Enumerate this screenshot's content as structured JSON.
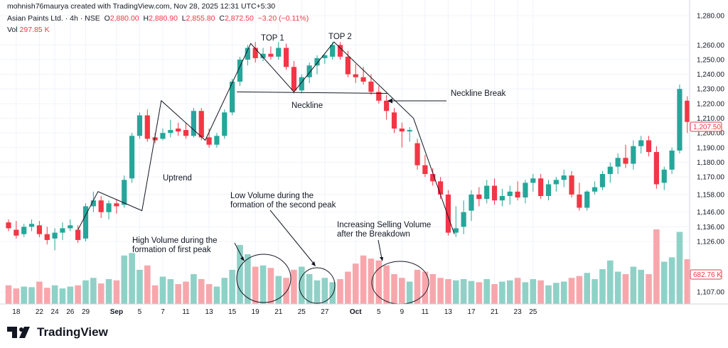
{
  "header": {
    "credit": "mohnish76maurya created with TradingView.com, Nov 28, 2025 12:31 UTC+5:30",
    "symbol": "Asian Paints Ltd. · 4h · NSE",
    "o_label": "O",
    "o_value": "2,880.00",
    "h_label": "H",
    "h_value": "2,880.90",
    "l_label": "L",
    "l_value": "2,855.80",
    "c_label": "C",
    "c_value": "2,872.50",
    "change": "−3.20 (−0.11%)",
    "vol_label": "Vol",
    "vol_value": "297.85 K"
  },
  "colors": {
    "up": "#26a69a",
    "down": "#f23645",
    "vol_up": "#8fd1c7",
    "vol_down": "#f7a7ac",
    "price_tag": "#f23645"
  },
  "price_tag": "1,207.50",
  "volume_tag": "682.76 K",
  "logo_text": "TradingView",
  "annotations": {
    "top1": "TOP 1",
    "top2": "TOP 2",
    "neckline": "Neckline",
    "neckline_break": "Neckline Break",
    "uptrend": "Uptrend",
    "low_volume_1": "Low Volume during the",
    "low_volume_2": "formation of the second peak",
    "high_volume_1": "High Volume during the",
    "high_volume_2": "formation of first peak",
    "increasing_1": "Increasing Selling Volume",
    "increasing_2": "after the Breakdown"
  },
  "chart_data": {
    "type": "candlestick",
    "y_ticks": [
      1280,
      1260,
      1250,
      1240,
      1230,
      1220,
      1210,
      1200,
      1190,
      1180,
      1170,
      1158,
      1146,
      1136,
      1126,
      1107
    ],
    "y_tick_labels": [
      "1,280.00",
      "1,260.00",
      "1,250.00",
      "1,240.00",
      "1,230.00",
      "1,220.00",
      "1,210.00",
      "1,200.00",
      "1,190.00",
      "1,180.00",
      "1,170.00",
      "1,158.00",
      "1,146.00",
      "1,136.00",
      "1,126.00",
      "1,107.00"
    ],
    "x_ticks": [
      {
        "label": "18",
        "i": 1
      },
      {
        "label": "22",
        "i": 4
      },
      {
        "label": "24",
        "i": 6
      },
      {
        "label": "26",
        "i": 8
      },
      {
        "label": "29",
        "i": 10
      },
      {
        "label": "Sep",
        "i": 14
      },
      {
        "label": "5",
        "i": 17
      },
      {
        "label": "7",
        "i": 20
      },
      {
        "label": "11",
        "i": 23
      },
      {
        "label": "13",
        "i": 26
      },
      {
        "label": "15",
        "i": 29
      },
      {
        "label": "19",
        "i": 32
      },
      {
        "label": "21",
        "i": 35
      },
      {
        "label": "25",
        "i": 38
      },
      {
        "label": "27",
        "i": 41
      },
      {
        "label": "Oct",
        "i": 45
      },
      {
        "label": "5",
        "i": 48
      },
      {
        "label": "9",
        "i": 51
      },
      {
        "label": "11",
        "i": 54
      },
      {
        "label": "13",
        "i": 57
      },
      {
        "label": "17",
        "i": 60
      },
      {
        "label": "21",
        "i": 63
      },
      {
        "label": "23",
        "i": 66
      },
      {
        "label": "25",
        "i": 68
      }
    ],
    "candles": [
      [
        1139,
        1141,
        1133,
        1135
      ],
      [
        1134,
        1140,
        1128,
        1130
      ],
      [
        1131,
        1138,
        1129,
        1136
      ],
      [
        1136,
        1141,
        1133,
        1138
      ],
      [
        1137,
        1140,
        1129,
        1131
      ],
      [
        1131,
        1136,
        1124,
        1127
      ],
      [
        1128,
        1135,
        1120,
        1132
      ],
      [
        1132,
        1139,
        1127,
        1135
      ],
      [
        1135,
        1141,
        1133,
        1137
      ],
      [
        1134,
        1137,
        1125,
        1127
      ],
      [
        1128,
        1152,
        1126,
        1150
      ],
      [
        1150,
        1160,
        1146,
        1154
      ],
      [
        1154,
        1157,
        1142,
        1146
      ],
      [
        1146,
        1154,
        1141,
        1152
      ],
      [
        1152,
        1155,
        1145,
        1150
      ],
      [
        1151,
        1171,
        1149,
        1168
      ],
      [
        1169,
        1200,
        1166,
        1198
      ],
      [
        1198,
        1214,
        1196,
        1212
      ],
      [
        1212,
        1216,
        1194,
        1196
      ],
      [
        1197,
        1200,
        1193,
        1195
      ],
      [
        1196,
        1203,
        1195,
        1200
      ],
      [
        1200,
        1209,
        1197,
        1202
      ],
      [
        1203,
        1207,
        1198,
        1201
      ],
      [
        1202,
        1207,
        1196,
        1198
      ],
      [
        1198,
        1217,
        1197,
        1215
      ],
      [
        1215,
        1217,
        1195,
        1197
      ],
      [
        1197,
        1203,
        1190,
        1192
      ],
      [
        1192,
        1200,
        1190,
        1198
      ],
      [
        1198,
        1216,
        1196,
        1214
      ],
      [
        1214,
        1237,
        1212,
        1235
      ],
      [
        1235,
        1252,
        1232,
        1250
      ],
      [
        1250,
        1260,
        1246,
        1258
      ],
      [
        1258,
        1262,
        1248,
        1251
      ],
      [
        1251,
        1258,
        1249,
        1254
      ],
      [
        1254,
        1259,
        1250,
        1252
      ],
      [
        1252,
        1262,
        1250,
        1258
      ],
      [
        1258,
        1261,
        1243,
        1245
      ],
      [
        1245,
        1249,
        1227,
        1229
      ],
      [
        1229,
        1240,
        1227,
        1238
      ],
      [
        1238,
        1248,
        1234,
        1246
      ],
      [
        1246,
        1253,
        1240,
        1251
      ],
      [
        1251,
        1254,
        1247,
        1253
      ],
      [
        1252,
        1262,
        1250,
        1260
      ],
      [
        1260,
        1262,
        1250,
        1252
      ],
      [
        1252,
        1256,
        1238,
        1240
      ],
      [
        1240,
        1247,
        1234,
        1238
      ],
      [
        1238,
        1245,
        1233,
        1235
      ],
      [
        1235,
        1240,
        1226,
        1228
      ],
      [
        1228,
        1232,
        1220,
        1222
      ],
      [
        1222,
        1226,
        1209,
        1215
      ],
      [
        1214,
        1217,
        1200,
        1203
      ],
      [
        1203,
        1207,
        1190,
        1201
      ],
      [
        1201,
        1204,
        1194,
        1202
      ],
      [
        1193,
        1196,
        1175,
        1178
      ],
      [
        1178,
        1185,
        1170,
        1172
      ],
      [
        1172,
        1176,
        1164,
        1167
      ],
      [
        1167,
        1170,
        1155,
        1158
      ],
      [
        1158,
        1161,
        1130,
        1132
      ],
      [
        1132,
        1150,
        1129,
        1135
      ],
      [
        1136,
        1154,
        1131,
        1146
      ],
      [
        1147,
        1161,
        1140,
        1158
      ],
      [
        1158,
        1163,
        1150,
        1155
      ],
      [
        1155,
        1168,
        1152,
        1164
      ],
      [
        1164,
        1169,
        1151,
        1154
      ],
      [
        1154,
        1162,
        1150,
        1157
      ],
      [
        1157,
        1164,
        1151,
        1160
      ],
      [
        1160,
        1167,
        1154,
        1156
      ],
      [
        1156,
        1168,
        1152,
        1166
      ],
      [
        1166,
        1172,
        1160,
        1169
      ],
      [
        1169,
        1172,
        1155,
        1157
      ],
      [
        1157,
        1168,
        1154,
        1165
      ],
      [
        1165,
        1170,
        1160,
        1168
      ],
      [
        1168,
        1175,
        1163,
        1171
      ],
      [
        1171,
        1174,
        1156,
        1158
      ],
      [
        1158,
        1166,
        1147,
        1149
      ],
      [
        1149,
        1161,
        1147,
        1160
      ],
      [
        1160,
        1167,
        1158,
        1163
      ],
      [
        1163,
        1174,
        1161,
        1172
      ],
      [
        1172,
        1180,
        1166,
        1177
      ],
      [
        1177,
        1186,
        1172,
        1183
      ],
      [
        1183,
        1192,
        1176,
        1179
      ],
      [
        1179,
        1195,
        1175,
        1191
      ],
      [
        1191,
        1198,
        1186,
        1195
      ],
      [
        1195,
        1198,
        1184,
        1187
      ],
      [
        1187,
        1191,
        1162,
        1165
      ],
      [
        1166,
        1177,
        1161,
        1175
      ],
      [
        1175,
        1190,
        1172,
        1188
      ],
      [
        1188,
        1233,
        1186,
        1230
      ],
      [
        1222,
        1225,
        1200,
        1207.5
      ]
    ],
    "volume": [
      30,
      25,
      28,
      27,
      36,
      26,
      30,
      25,
      28,
      30,
      38,
      42,
      33,
      40,
      38,
      78,
      82,
      55,
      62,
      30,
      44,
      40,
      32,
      36,
      48,
      40,
      32,
      28,
      42,
      55,
      95,
      80,
      60,
      62,
      58,
      45,
      42,
      55,
      60,
      48,
      38,
      42,
      35,
      40,
      52,
      65,
      78,
      73,
      70,
      62,
      48,
      42,
      36,
      55,
      52,
      48,
      42,
      40,
      38,
      40,
      37,
      35,
      40,
      32,
      36,
      38,
      42,
      35,
      40,
      38,
      30,
      34,
      36,
      42,
      45,
      50,
      40,
      56,
      70,
      52,
      48,
      60,
      55,
      48,
      120,
      68,
      75,
      116,
      72
    ]
  }
}
